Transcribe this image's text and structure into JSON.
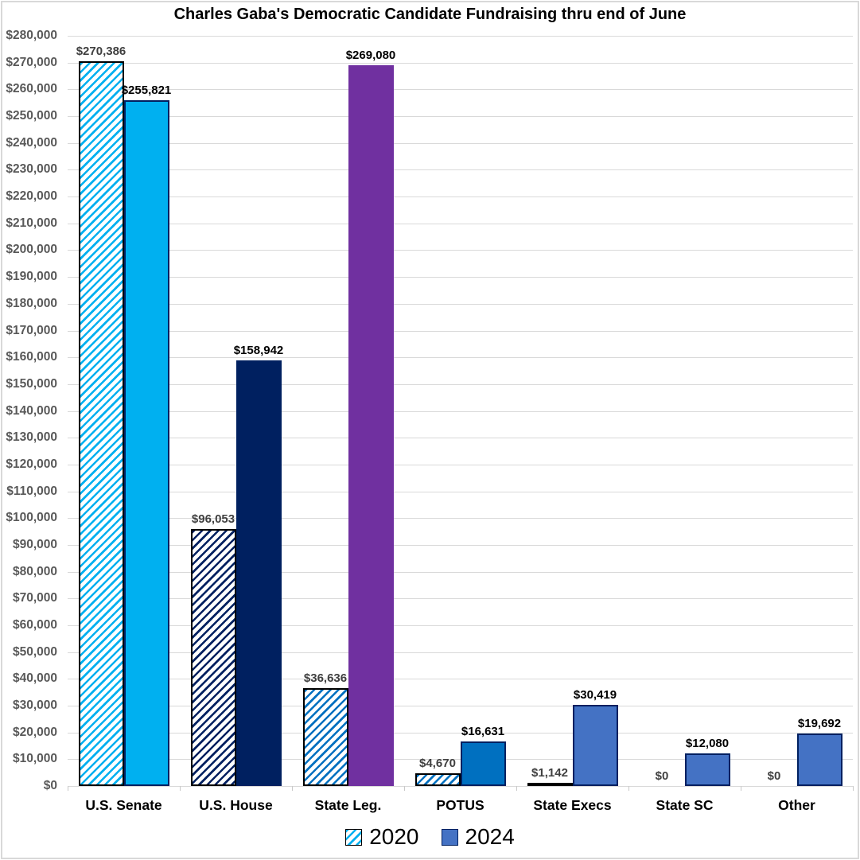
{
  "title": "Charles Gaba's Democratic Candidate Fundraising thru end of June",
  "chart_data": {
    "type": "bar",
    "title": "Charles Gaba's Democratic Candidate Fundraising thru end of June",
    "categories": [
      "U.S. Senate",
      "U.S. House",
      "State Leg.",
      "POTUS",
      "State Execs",
      "State SC",
      "Other"
    ],
    "series": [
      {
        "name": "2020",
        "style": "hatched",
        "values": [
          270386,
          96053,
          36636,
          4670,
          1142,
          0,
          0
        ],
        "data_labels": [
          "$270,386",
          "$96,053",
          "$36,636",
          "$4,670",
          "$1,142",
          "$0",
          "$0"
        ],
        "bar_colors": [
          "#00B0F0",
          "#002060",
          "#0070C0",
          "#0070C0",
          "#00B0F0",
          "#00B0F0",
          "#00B0F0"
        ],
        "border_colors": [
          "#000000",
          "#000000",
          "#000000",
          "#000000",
          "#000000",
          "#000000",
          "#000000"
        ],
        "label_color": "#404040"
      },
      {
        "name": "2024",
        "style": "solid",
        "values": [
          255821,
          158942,
          269080,
          16631,
          30419,
          12080,
          19692
        ],
        "data_labels": [
          "$255,821",
          "$158,942",
          "$269,080",
          "$16,631",
          "$30,419",
          "$12,080",
          "$19,692"
        ],
        "bar_colors": [
          "#00B0F0",
          "#002060",
          "#7030A0",
          "#0070C0",
          "#4472C4",
          "#4472C4",
          "#4472C4"
        ],
        "border_colors": [
          "#002060",
          "#002060",
          "#7030A0",
          "#002060",
          "#002060",
          "#002060",
          "#002060"
        ],
        "label_color": "#000000"
      }
    ],
    "ylim": [
      0,
      280000
    ],
    "ytick_step": 10000,
    "ytick_labels": [
      "$0",
      "$10,000",
      "$20,000",
      "$30,000",
      "$40,000",
      "$50,000",
      "$60,000",
      "$70,000",
      "$80,000",
      "$90,000",
      "$100,000",
      "$110,000",
      "$120,000",
      "$130,000",
      "$140,000",
      "$150,000",
      "$160,000",
      "$170,000",
      "$180,000",
      "$190,000",
      "$200,000",
      "$210,000",
      "$220,000",
      "$230,000",
      "$240,000",
      "$250,000",
      "$260,000",
      "$270,000",
      "$280,000"
    ],
    "grid": true,
    "legend_position": "bottom",
    "legend": [
      "2020",
      "2024"
    ]
  },
  "colors": {
    "grid": "#D9D9D9",
    "axis_label": "#595959",
    "category_label": "#000000",
    "legend_2020_swatch": "#00B0F0",
    "legend_2020_border": "#000000",
    "legend_2024_swatch": "#4472C4",
    "legend_2024_border": "#002060"
  }
}
